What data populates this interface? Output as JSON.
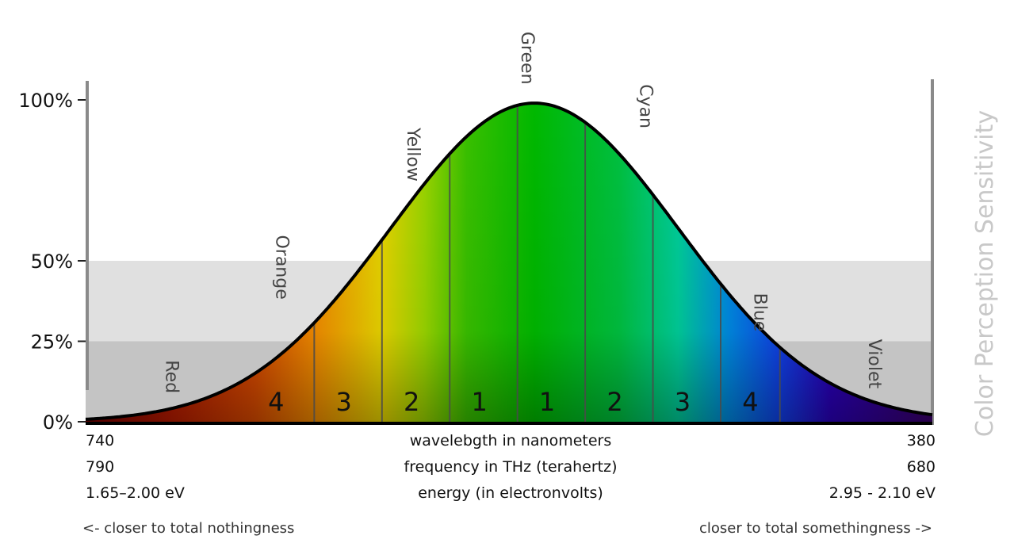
{
  "chart_data": {
    "type": "area",
    "title": "",
    "ylabel": "Color Perception Sensitivity",
    "ylim": [
      0,
      100
    ],
    "yticks": [
      {
        "value": 100,
        "label": "100%"
      },
      {
        "value": 50,
        "label": "50%"
      },
      {
        "value": 25,
        "label": "25%"
      },
      {
        "value": 0,
        "label": "0%"
      }
    ],
    "shaded_bands": [
      {
        "from": 25,
        "to": 50,
        "color": "#e0e0e0"
      },
      {
        "from": 0,
        "to": 25,
        "color": "#c4c4c4"
      }
    ],
    "curve": {
      "shape": "gaussian",
      "peak_value": 99,
      "peak_position": 0.53,
      "spread": 0.17
    },
    "band_boundaries": [
      0.27,
      0.35,
      0.43,
      0.51,
      0.59,
      0.67,
      0.75,
      0.82
    ],
    "band_numbers": [
      {
        "label": "4",
        "position": 0.225
      },
      {
        "label": "3",
        "position": 0.305
      },
      {
        "label": "2",
        "position": 0.385
      },
      {
        "label": "1",
        "position": 0.465
      },
      {
        "label": "1",
        "position": 0.545
      },
      {
        "label": "2",
        "position": 0.625
      },
      {
        "label": "3",
        "position": 0.705
      },
      {
        "label": "4",
        "position": 0.785
      }
    ],
    "color_labels": [
      {
        "label": "Red",
        "position": 0.095,
        "level": 14
      },
      {
        "label": "Orange",
        "position": 0.225,
        "level": 48
      },
      {
        "label": "Yellow",
        "position": 0.38,
        "level": 83
      },
      {
        "label": "Green",
        "position": 0.515,
        "level": 113
      },
      {
        "label": "Cyan",
        "position": 0.655,
        "level": 98
      },
      {
        "label": "Blue",
        "position": 0.79,
        "level": 34
      },
      {
        "label": "Violet",
        "position": 0.925,
        "level": 18
      }
    ],
    "spectrum_stops": [
      {
        "offset": 0.0,
        "color": "#7a0000"
      },
      {
        "offset": 0.1,
        "color": "#b51a00"
      },
      {
        "offset": 0.2,
        "color": "#d84a00"
      },
      {
        "offset": 0.27,
        "color": "#f08a00"
      },
      {
        "offset": 0.35,
        "color": "#e6d400"
      },
      {
        "offset": 0.4,
        "color": "#9ad400"
      },
      {
        "offset": 0.45,
        "color": "#39c000"
      },
      {
        "offset": 0.53,
        "color": "#00b800"
      },
      {
        "offset": 0.63,
        "color": "#00c040"
      },
      {
        "offset": 0.7,
        "color": "#00cc99"
      },
      {
        "offset": 0.76,
        "color": "#0088e0"
      },
      {
        "offset": 0.82,
        "color": "#1040e8"
      },
      {
        "offset": 0.88,
        "color": "#2a00b8"
      },
      {
        "offset": 1.0,
        "color": "#3a006a"
      }
    ],
    "x_rows": [
      {
        "left": "740",
        "center": "wavelebgth in nanometers",
        "right": "380"
      },
      {
        "left": "790",
        "center": "frequency in THz (terahertz)",
        "right": "680"
      },
      {
        "left": "1.65–2.00 eV",
        "center": "energy (in electronvolts)",
        "right": "2.95 - 2.10 eV"
      }
    ],
    "footer": {
      "left": "<- closer to total nothingness",
      "right": "closer to total somethingness ->"
    }
  }
}
